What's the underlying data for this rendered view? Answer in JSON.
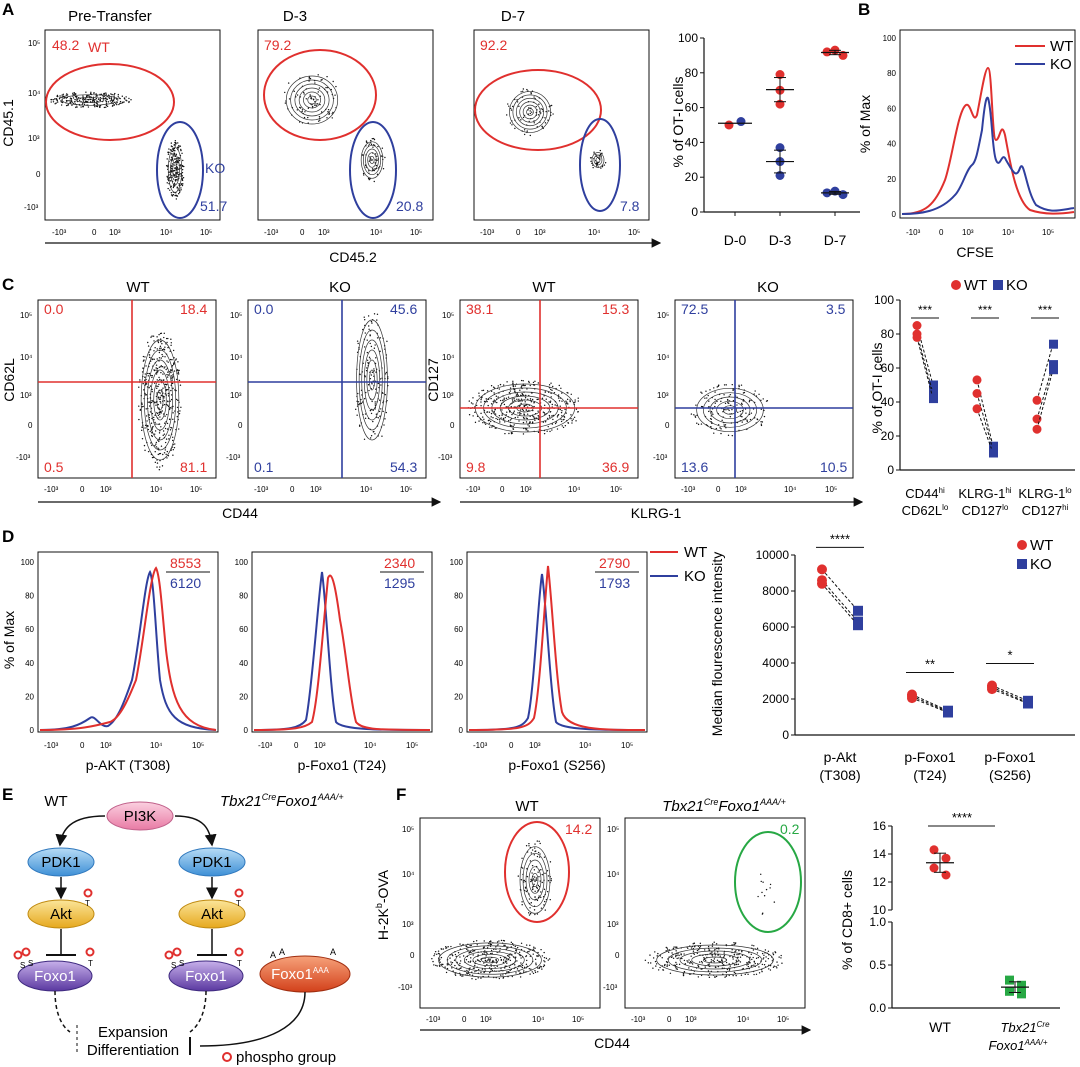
{
  "colors": {
    "wt": "#e0302e",
    "ko": "#2f3f9e",
    "green": "#27a844",
    "black": "#111111",
    "node_pi3k": "#ef90b0",
    "node_pdk1": "#5aa7e0",
    "node_akt": "#f0c040",
    "node_foxo1": "#7b55b8",
    "node_foxo1aaa": "#e85a2a"
  },
  "panels": {
    "A": "A",
    "B": "B",
    "C": "C",
    "D": "D",
    "E": "E",
    "F": "F"
  },
  "panelA": {
    "titles": [
      "Pre-Transfer",
      "D-3",
      "D-7"
    ],
    "ylabel": "CD45.1",
    "xlabel": "CD45.2",
    "wt_label": "WT",
    "ko_label": "KO",
    "wt_pct": [
      "48.2",
      "79.2",
      "92.2"
    ],
    "ko_pct": [
      "51.7",
      "20.8",
      "7.8"
    ],
    "chart_data": {
      "type": "scatter",
      "ylabel": "% of OT-I cells",
      "ylim": [
        0,
        100
      ],
      "categories": [
        "D-0",
        "D-3",
        "D-7"
      ],
      "yticks": [
        "0",
        "20",
        "40",
        "60",
        "80",
        "100"
      ],
      "series": [
        {
          "name": "WT",
          "points": [
            [
              0,
              50
            ],
            [
              1,
              79
            ],
            [
              1,
              70
            ],
            [
              1,
              62
            ],
            [
              2,
              93
            ],
            [
              2,
              90
            ],
            [
              2,
              92
            ]
          ]
        },
        {
          "name": "KO",
          "points": [
            [
              0,
              52
            ],
            [
              1,
              37
            ],
            [
              1,
              29
            ],
            [
              1,
              21
            ],
            [
              2,
              12
            ],
            [
              2,
              10
            ],
            [
              2,
              11
            ]
          ]
        }
      ]
    }
  },
  "panelB": {
    "ylabel": "% of Max",
    "xlabel": "CFSE",
    "legend": [
      "WT",
      "KO"
    ],
    "yticks": [
      "0",
      "20",
      "40",
      "60",
      "80",
      "100"
    ]
  },
  "panelC": {
    "titles": [
      "WT",
      "KO",
      "WT",
      "KO"
    ],
    "plot1": {
      "ylabel": "CD62L",
      "q": [
        "0.0",
        "18.4",
        "0.5",
        "81.1"
      ]
    },
    "plot2": {
      "q": [
        "0.0",
        "45.6",
        "0.1",
        "54.3"
      ]
    },
    "plot3": {
      "ylabel": "CD127",
      "q": [
        "38.1",
        "15.3",
        "9.8",
        "36.9"
      ]
    },
    "plot4": {
      "q": [
        "72.5",
        "3.5",
        "13.6",
        "10.5"
      ]
    },
    "xlabel_left": "CD44",
    "xlabel_right": "KLRG-1",
    "legend": [
      "WT",
      "KO"
    ],
    "chart_data": {
      "type": "scatter",
      "ylabel": "% of OT-I cells",
      "ylim": [
        0,
        100
      ],
      "yticks": [
        "0",
        "20",
        "40",
        "60",
        "80",
        "100"
      ],
      "categories": [
        "CD44hi CD62Llo",
        "KLRG-1hi CD127lo",
        "KLRG-1lo CD127hi"
      ],
      "cat_lines": [
        [
          "CD44",
          "hi",
          ""
        ],
        [
          "CD62L",
          "lo",
          ""
        ],
        [
          "KLRG-1",
          "hi",
          ""
        ],
        [
          "CD127",
          "lo",
          ""
        ],
        [
          "KLRG-1",
          "lo",
          ""
        ],
        [
          "CD127",
          "hi",
          ""
        ]
      ],
      "sig": [
        "***",
        "***",
        "***"
      ],
      "series": [
        {
          "name": "WT",
          "values": [
            [
              85,
              80,
              78
            ],
            [
              53,
              45,
              36
            ],
            [
              41,
              30,
              24
            ]
          ]
        },
        {
          "name": "KO",
          "values": [
            [
              50,
              45,
              42
            ],
            [
              14,
              12,
              10
            ],
            [
              74,
              62,
              59
            ]
          ]
        }
      ]
    }
  },
  "panelD": {
    "ylabel": "% of Max",
    "xlabels": [
      "p-AKT (T308)",
      "p-Foxo1 (T24)",
      "p-Foxo1 (S256)"
    ],
    "mfi_wt": [
      "8553",
      "2340",
      "2790"
    ],
    "mfi_ko": [
      "6120",
      "1295",
      "1793"
    ],
    "legend": [
      "WT",
      "KO"
    ],
    "yticks": [
      "0",
      "20",
      "40",
      "60",
      "80",
      "100"
    ],
    "chart_data": {
      "type": "scatter",
      "ylabel": "Median flourescence intensity",
      "ylim": [
        0,
        10000
      ],
      "yticks": [
        "0",
        "2000",
        "4000",
        "6000",
        "8000",
        "10000"
      ],
      "categories": [
        "p-Akt (T308)",
        "p-Foxo1 (T24)",
        "p-Foxo1 (S256)"
      ],
      "cat_lines": [
        [
          "p-Akt",
          "(T308)"
        ],
        [
          "p-Foxo1",
          "(T24)"
        ],
        [
          "p-Foxo1",
          "(S256)"
        ]
      ],
      "sig": [
        "****",
        "**",
        "*"
      ],
      "series": [
        {
          "name": "WT",
          "values": [
            [
              9200,
              8600,
              8400
            ],
            [
              2250,
              2150,
              2050
            ],
            [
              2750,
              2650,
              2550
            ]
          ]
        },
        {
          "name": "KO",
          "values": [
            [
              6900,
              6300,
              6100
            ],
            [
              1350,
              1300,
              1250
            ],
            [
              1900,
              1800,
              1750
            ]
          ]
        }
      ]
    }
  },
  "panelE": {
    "wt_label": "WT",
    "tbx_label": "Tbx21",
    "cre_sup": "Cre",
    "foxo1_label": "Foxo1",
    "aaa_sup": "AAA/+",
    "nodes": {
      "pi3k": "PI3K",
      "pdk1": "PDK1",
      "akt": "Akt",
      "foxo1": "Foxo1",
      "foxo1aaa": "Foxo1",
      "aaa_sup": "AAA"
    },
    "outcome1": "Expansion",
    "outcome2": "Differentiation",
    "legend": "phospho group",
    "mod_t": "T",
    "mod_s": "S",
    "mod_a": "A"
  },
  "panelF": {
    "title_wt": "WT",
    "title_tbx": "Tbx21",
    "cre_sup": "Cre",
    "foxo1_label": "Foxo1",
    "aaa_sup": "AAA/+",
    "ylabel": "H-2K",
    "ylabel_sup": "b",
    "ylabel_end": "-OVA",
    "xlabel": "CD44",
    "pct": [
      "14.2",
      "0.2"
    ],
    "chart_data": {
      "type": "scatter",
      "ylabel": "% of CD8+ cells",
      "ylim_upper": [
        10,
        16
      ],
      "ylim_lower": [
        0,
        1.0
      ],
      "yticks_upper": [
        "10",
        "12",
        "14",
        "16"
      ],
      "yticks_lower": [
        "0.0",
        "0.5",
        "1.0"
      ],
      "categories": [
        "WT",
        "Tbx21Cre Foxo1AAA/+"
      ],
      "sig": "****",
      "series": [
        {
          "name": "WT",
          "values": [
            14.3,
            13.7,
            13.0,
            12.5
          ]
        },
        {
          "name": "Tbx21Cre Foxo1AAA/+",
          "values": [
            0.33,
            0.27,
            0.2,
            0.17
          ]
        }
      ]
    }
  }
}
